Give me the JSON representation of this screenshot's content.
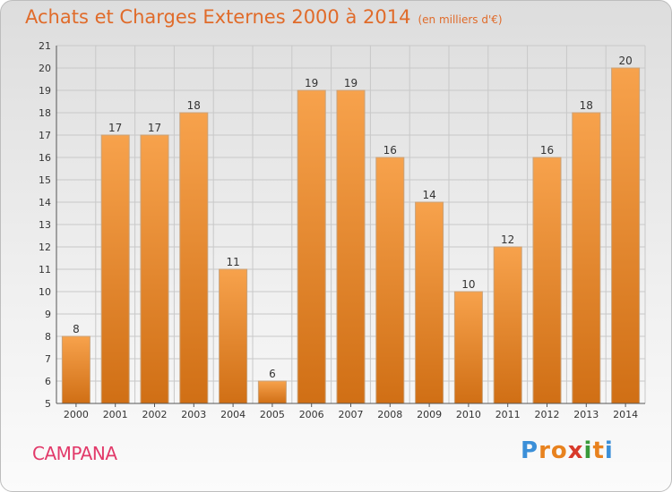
{
  "header": {
    "title": "Achats et Charges Externes 2000 à 2014",
    "subtitle": "(en milliers d'€)"
  },
  "footer": {
    "city": "CAMPANA",
    "logo_letters": [
      "P",
      "r",
      "o",
      "x",
      "i",
      "t",
      "i"
    ],
    "logo_colors": [
      "#3b8fd8",
      "#e8821e",
      "#e8821e",
      "#d83a2b",
      "#3a9a3a",
      "#e8821e",
      "#3b8fd8"
    ]
  },
  "colors": {
    "bar_top": "#f7a24c",
    "bar_bottom": "#d06f15",
    "bar_stroke": "#c9a27a",
    "grid": "#c8c8c8",
    "axis": "#555555",
    "title": "#e06b2a",
    "city": "#e23a6a"
  },
  "chart_data": {
    "type": "bar",
    "title": "Achats et Charges Externes 2000 à 2014",
    "subtitle": "(en milliers d'€)",
    "xlabel": "",
    "ylabel": "",
    "categories": [
      "2000",
      "2001",
      "2002",
      "2003",
      "2004",
      "2005",
      "2006",
      "2007",
      "2008",
      "2009",
      "2010",
      "2011",
      "2012",
      "2013",
      "2014"
    ],
    "values": [
      8,
      17,
      17,
      18,
      11,
      6,
      19,
      19,
      16,
      14,
      10,
      12,
      16,
      18,
      20
    ],
    "ylim": [
      5,
      21
    ],
    "yticks": [
      5,
      6,
      7,
      8,
      9,
      10,
      11,
      12,
      13,
      14,
      15,
      16,
      17,
      18,
      19,
      20,
      21
    ],
    "grid": true,
    "legend": "none"
  }
}
